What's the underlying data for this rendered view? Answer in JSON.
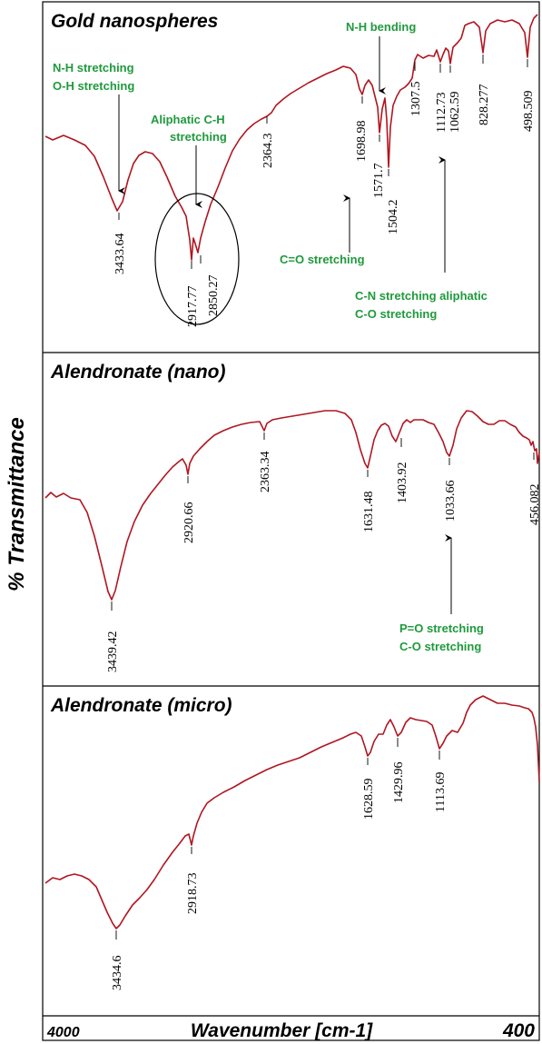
{
  "y_axis_label": "% Transmittance",
  "x_axis": {
    "label": "Wavenumber [cm-1]",
    "left_label": "4000",
    "right_label": "400"
  },
  "chart_data": [
    {
      "type": "line",
      "title": "Gold nanospheres",
      "xlim": [
        4000,
        400
      ],
      "peaks": [
        {
          "x": 3433.64,
          "label": "3433.64"
        },
        {
          "x": 2917.77,
          "label": "2917.77"
        },
        {
          "x": 2850.27,
          "label": "2850.27"
        },
        {
          "x": 2364.3,
          "label": "2364.3"
        },
        {
          "x": 1698.98,
          "label": "1698.98"
        },
        {
          "x": 1571.7,
          "label": "1571.7"
        },
        {
          "x": 1504.2,
          "label": "1504.2"
        },
        {
          "x": 1307.5,
          "label": "1307.5"
        },
        {
          "x": 1112.73,
          "label": "1112.73"
        },
        {
          "x": 1062.59,
          "label": "1062.59"
        },
        {
          "x": 828.277,
          "label": "828.277"
        },
        {
          "x": 498.509,
          "label": "498.509"
        }
      ],
      "annotations": [
        {
          "lines": [
            "N-H stretching",
            "O-H stretching"
          ]
        },
        {
          "lines": [
            "Aliphatic C-H",
            "stretching"
          ]
        },
        {
          "lines": [
            "N-H bending"
          ]
        },
        {
          "lines": [
            "C=O stretching"
          ]
        },
        {
          "lines": [
            "C-N stretching aliphatic",
            "C-O stretching"
          ]
        }
      ]
    },
    {
      "type": "line",
      "title": "Alendronate (nano)",
      "xlim": [
        4000,
        400
      ],
      "peaks": [
        {
          "x": 3439.42,
          "label": "3439.42"
        },
        {
          "x": 2920.66,
          "label": "2920.66"
        },
        {
          "x": 2363.34,
          "label": "2363.34"
        },
        {
          "x": 1631.48,
          "label": "1631.48"
        },
        {
          "x": 1403.92,
          "label": "1403.92"
        },
        {
          "x": 1033.66,
          "label": "1033.66"
        },
        {
          "x": 456.082,
          "label": "456.082"
        }
      ],
      "annotations": [
        {
          "lines": [
            "P=O stretching",
            "C-O stretching"
          ]
        }
      ]
    },
    {
      "type": "line",
      "title": "Alendronate (micro)",
      "xlim": [
        4000,
        400
      ],
      "peaks": [
        {
          "x": 3434.6,
          "label": "3434.6"
        },
        {
          "x": 2918.73,
          "label": "2918.73"
        },
        {
          "x": 1628.59,
          "label": "1628.59"
        },
        {
          "x": 1429.96,
          "label": "1429.96"
        },
        {
          "x": 1113.69,
          "label": "1113.69"
        }
      ],
      "annotations": []
    }
  ],
  "colors": {
    "trace": "#b01620",
    "annotation": "#1f9a3c",
    "frame": "#000000"
  }
}
